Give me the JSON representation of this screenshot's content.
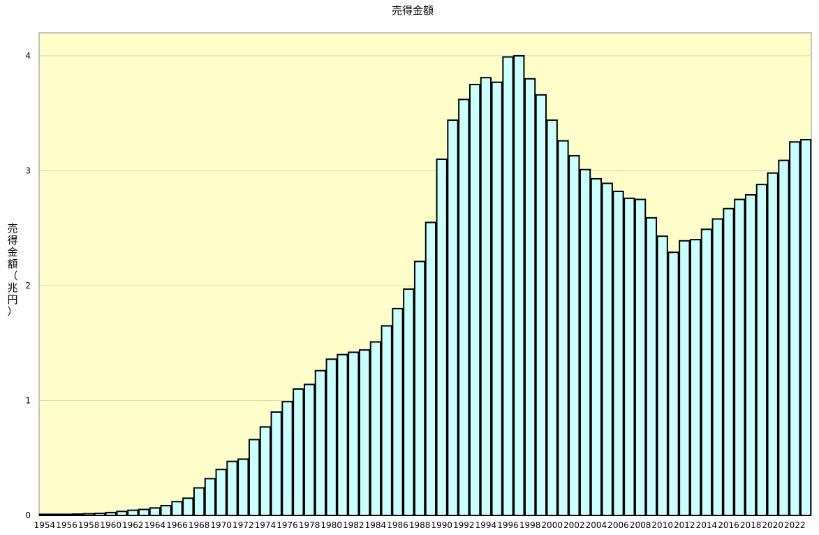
{
  "colors": {
    "plot_background": "#ffffcc",
    "bar_fill": "#ccffff",
    "bar_stroke": "#000000"
  },
  "chart_data": {
    "type": "bar",
    "title": "売得金額",
    "ylabel": "売得金額（兆円）",
    "xlabel": "",
    "ylim": [
      0,
      4.2
    ],
    "yticks": [
      0,
      1,
      2,
      3,
      4
    ],
    "grid": true,
    "legend": "none",
    "categories": [
      1954,
      1955,
      1956,
      1957,
      1958,
      1959,
      1960,
      1961,
      1962,
      1963,
      1964,
      1965,
      1966,
      1967,
      1968,
      1969,
      1970,
      1971,
      1972,
      1973,
      1974,
      1975,
      1976,
      1977,
      1978,
      1979,
      1980,
      1981,
      1982,
      1983,
      1984,
      1985,
      1986,
      1987,
      1988,
      1989,
      1990,
      1991,
      1992,
      1993,
      1994,
      1995,
      1996,
      1997,
      1998,
      1999,
      2000,
      2001,
      2002,
      2003,
      2004,
      2005,
      2006,
      2007,
      2008,
      2009,
      2010,
      2011,
      2012,
      2013,
      2014,
      2015,
      2016,
      2017,
      2018,
      2019,
      2020,
      2021,
      2022,
      2023
    ],
    "xtick_labels": [
      "1954",
      "1956",
      "1958",
      "1960",
      "1962",
      "1964",
      "1966",
      "1968",
      "1970",
      "1972",
      "1974",
      "1976",
      "1978",
      "1980",
      "1982",
      "1984",
      "1986",
      "1988",
      "1990",
      "1992",
      "1994",
      "1996",
      "1998",
      "2000",
      "2002",
      "2004",
      "2006",
      "2008",
      "2010",
      "2012",
      "2014",
      "2016",
      "2018",
      "2020",
      "2022"
    ],
    "values": [
      0.01,
      0.01,
      0.01,
      0.012,
      0.015,
      0.018,
      0.025,
      0.035,
      0.045,
      0.052,
      0.065,
      0.085,
      0.12,
      0.15,
      0.24,
      0.32,
      0.4,
      0.47,
      0.49,
      0.66,
      0.77,
      0.9,
      0.99,
      1.1,
      1.14,
      1.26,
      1.36,
      1.4,
      1.42,
      1.44,
      1.51,
      1.65,
      1.8,
      1.97,
      2.21,
      2.55,
      3.1,
      3.44,
      3.62,
      3.75,
      3.81,
      3.77,
      3.99,
      4.0,
      3.8,
      3.66,
      3.44,
      3.26,
      3.13,
      3.01,
      2.93,
      2.89,
      2.82,
      2.76,
      2.75,
      2.59,
      2.43,
      2.29,
      2.39,
      2.4,
      2.49,
      2.58,
      2.67,
      2.75,
      2.79,
      2.88,
      2.98,
      3.09,
      3.25,
      3.27
    ]
  }
}
